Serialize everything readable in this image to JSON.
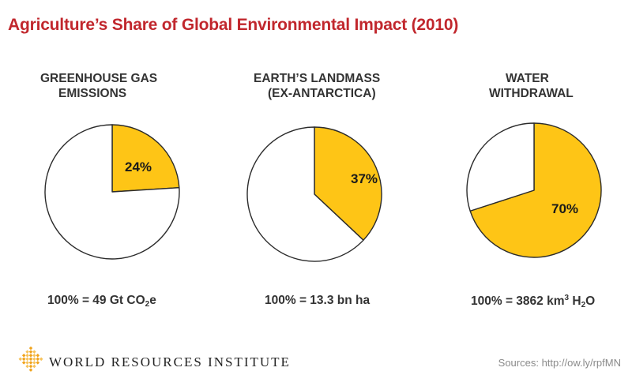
{
  "title": "Agriculture’s Share of Global Environmental Impact (2010)",
  "colors": {
    "slice": "#fec516",
    "rest": "#ffffff",
    "outline": "#2b2b2b",
    "title": "#c1272d"
  },
  "chart_data": [
    {
      "type": "pie",
      "title_lines": [
        "GREENHOUSE GAS",
        "EMISSIONS"
      ],
      "slices": [
        {
          "value": 24,
          "label": "24%"
        },
        {
          "value": 76,
          "label": ""
        }
      ],
      "basis": {
        "pre": "100% = 49 Gt CO",
        "sub": "2",
        "post": "e"
      }
    },
    {
      "type": "pie",
      "title_lines": [
        "EARTH’S LANDMASS",
        "(EX-ANTARCTICA)"
      ],
      "slices": [
        {
          "value": 37,
          "label": "37%"
        },
        {
          "value": 63,
          "label": ""
        }
      ],
      "basis": {
        "text": "100% = 13.3 bn ha"
      }
    },
    {
      "type": "pie",
      "title_lines": [
        "WATER",
        "WITHDRAWAL"
      ],
      "slices": [
        {
          "value": 70,
          "label": "70%"
        },
        {
          "value": 30,
          "label": ""
        }
      ],
      "basis": {
        "pre": "100% = 3862 km",
        "sup": "3",
        "mid": " H",
        "sub": "2",
        "post": "O"
      }
    }
  ],
  "footer": {
    "organization": "WORLD RESOURCES INSTITUTE",
    "logo_icon": "wri-diamond-logo-icon",
    "sources": "Sources: http://ow.ly/rpfMN"
  }
}
